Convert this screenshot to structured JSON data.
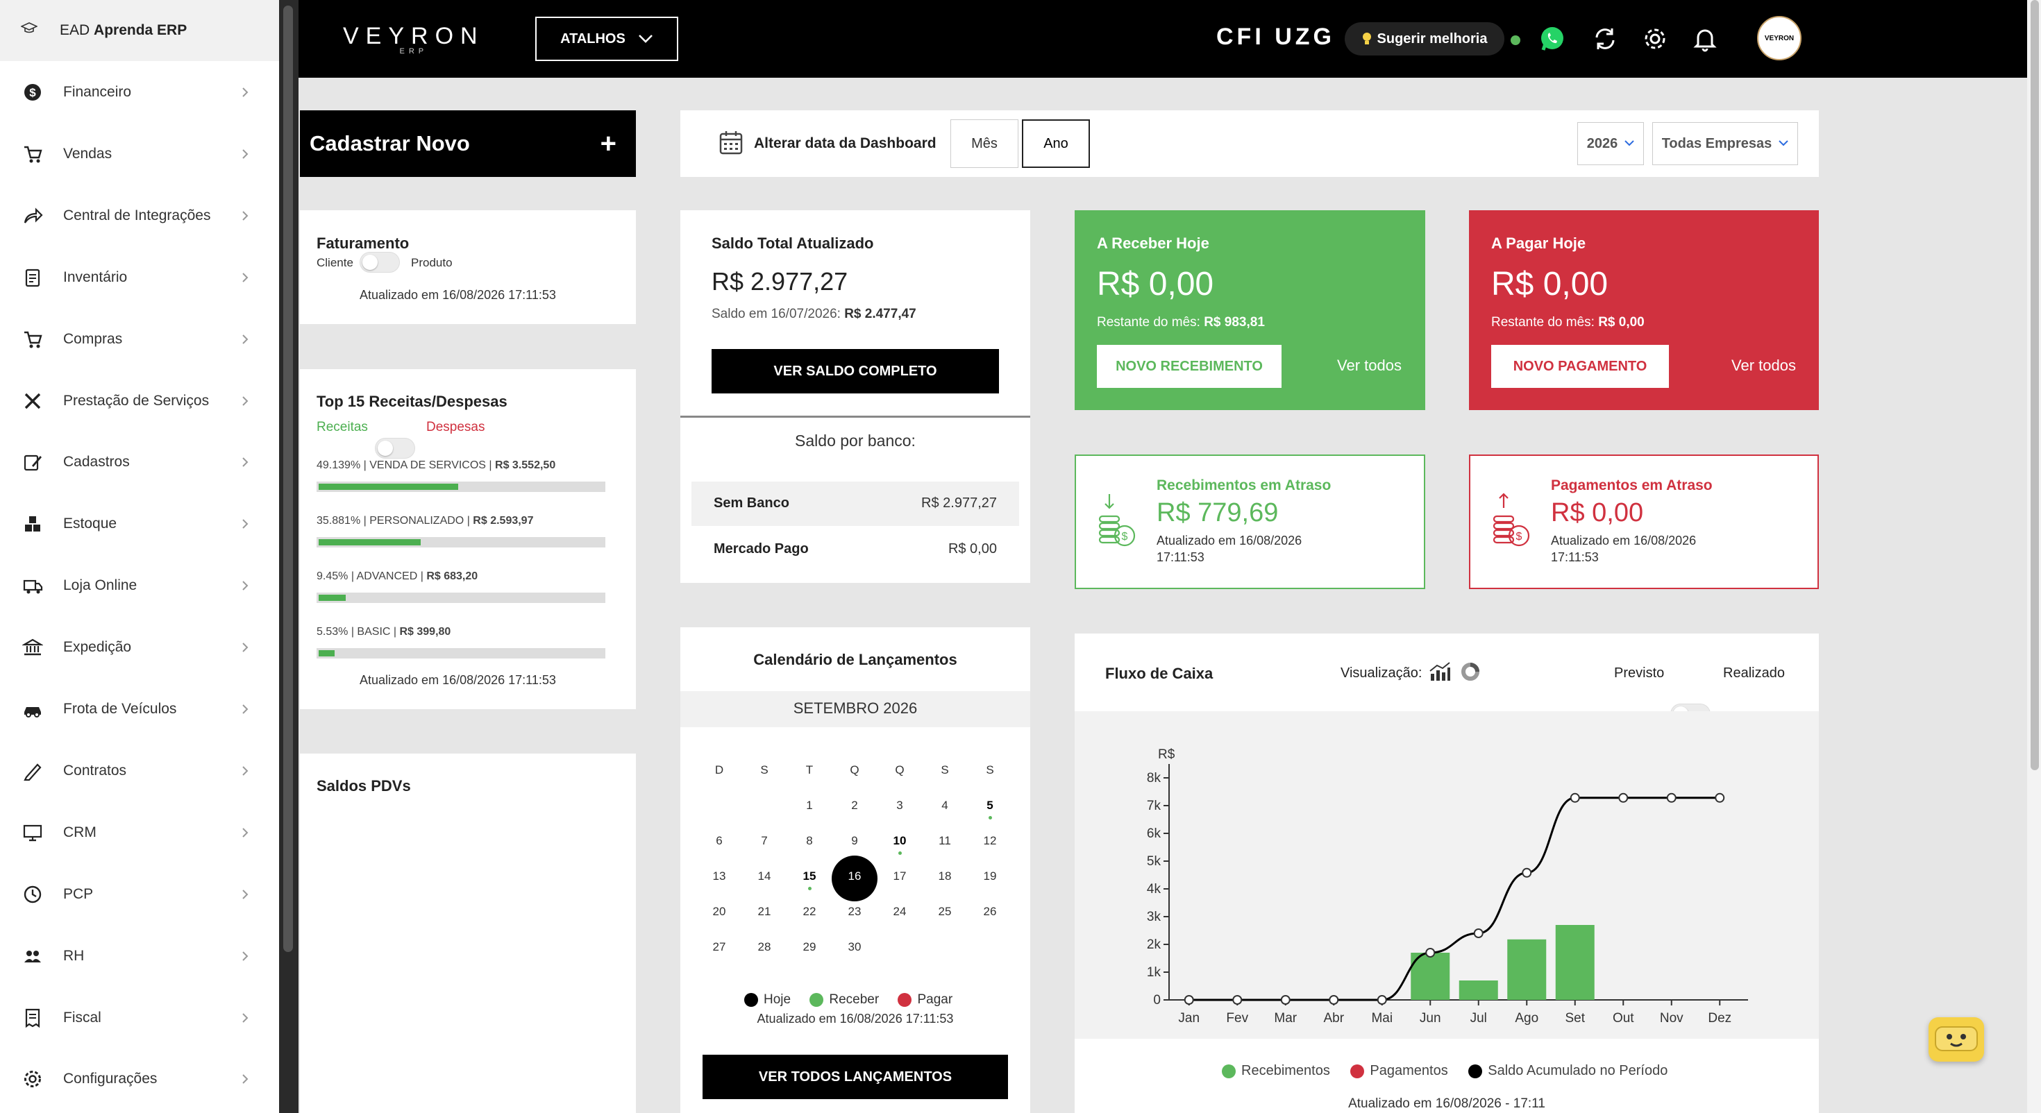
{
  "sidebar": {
    "top": {
      "prefix": "EAD",
      "name": "Aprenda ERP"
    },
    "items": [
      {
        "label": "Financeiro",
        "icon": "dollar-icon"
      },
      {
        "label": "Vendas",
        "icon": "cart-icon"
      },
      {
        "label": "Central de Integrações",
        "icon": "share-icon"
      },
      {
        "label": "Inventário",
        "icon": "clipboard-icon"
      },
      {
        "label": "Compras",
        "icon": "cart-icon"
      },
      {
        "label": "Prestação de Serviços",
        "icon": "tools-icon"
      },
      {
        "label": "Cadastros",
        "icon": "edit-icon"
      },
      {
        "label": "Estoque",
        "icon": "boxes-icon"
      },
      {
        "label": "Loja Online",
        "icon": "truck-icon"
      },
      {
        "label": "Expedição",
        "icon": "bank-icon"
      },
      {
        "label": "Frota de Veículos",
        "icon": "car-icon"
      },
      {
        "label": "Contratos",
        "icon": "pen-icon"
      },
      {
        "label": "CRM",
        "icon": "monitor-icon"
      },
      {
        "label": "PCP",
        "icon": "clock-icon"
      },
      {
        "label": "RH",
        "icon": "users-icon"
      },
      {
        "label": "Fiscal",
        "icon": "receipt-icon"
      },
      {
        "label": "Configurações",
        "icon": "gear-icon"
      }
    ]
  },
  "header": {
    "logo": "VEYRON",
    "logo_sub": "ERP",
    "shortcuts": "ATALHOS",
    "company_code": "CFI UZG",
    "suggest": "Sugerir melhoria",
    "avatar_text": "VEYRON"
  },
  "cadastrar": {
    "label": "Cadastrar Novo",
    "plus": "+"
  },
  "datebar": {
    "label": "Alterar data da Dashboard",
    "month": "Mês",
    "year": "Ano",
    "year_value": "2026",
    "company": "Todas Empresas"
  },
  "faturamento": {
    "title": "Faturamento",
    "left": "Cliente",
    "right": "Produto",
    "updated": "Atualizado em 16/08/2026 17:11:53"
  },
  "top15": {
    "title": "Top 15 Receitas/Despesas",
    "left": "Receitas",
    "right": "Despesas",
    "items": [
      {
        "pct": "49.139%",
        "name": "VENDA DE SERVICOS",
        "value": "R$ 3.552,50",
        "fraction": 0.49139
      },
      {
        "pct": "35.881%",
        "name": "PERSONALIZADO",
        "value": "R$ 2.593,97",
        "fraction": 0.35881
      },
      {
        "pct": "9.45%",
        "name": "ADVANCED",
        "value": "R$ 683,20",
        "fraction": 0.0945
      },
      {
        "pct": "5.53%",
        "name": "BASIC",
        "value": "R$ 399,80",
        "fraction": 0.0553
      }
    ],
    "updated": "Atualizado em 16/08/2026 17:11:53"
  },
  "saldos_pdv": {
    "title": "Saldos PDVs"
  },
  "saldo": {
    "title": "Saldo Total Atualizado",
    "value": "R$ 2.977,27",
    "prev_label": "Saldo em 16/07/2026:",
    "prev_value": "R$ 2.477,47",
    "button": "VER SALDO COMPLETO",
    "by_bank": "Saldo por banco:",
    "banks": [
      {
        "name": "Sem Banco",
        "value": "R$ 2.977,27"
      },
      {
        "name": "Mercado Pago",
        "value": "R$ 0,00"
      }
    ]
  },
  "receber": {
    "title": "A Receber Hoje",
    "value": "R$ 0,00",
    "rest_label": "Restante do mês:",
    "rest_value": "R$ 983,81",
    "button": "NOVO RECEBIMENTO",
    "link": "Ver todos"
  },
  "pagar": {
    "title": "A Pagar Hoje",
    "value": "R$ 0,00",
    "rest_label": "Restante do mês:",
    "rest_value": "R$ 0,00",
    "button": "NOVO PAGAMENTO",
    "link": "Ver todos"
  },
  "atraso_receb": {
    "title": "Recebimentos em Atraso",
    "value": "R$ 779,69",
    "updated1": "Atualizado em 16/08/2026",
    "updated2": "17:11:53"
  },
  "atraso_pag": {
    "title": "Pagamentos em Atraso",
    "value": "R$ 0,00",
    "updated1": "Atualizado em 16/08/2026",
    "updated2": "17:11:53"
  },
  "calendar": {
    "title": "Calendário de Lançamentos",
    "month": "SETEMBRO 2026",
    "weekdays": [
      "D",
      "S",
      "T",
      "Q",
      "Q",
      "S",
      "S"
    ],
    "rows": [
      [
        "",
        "",
        "1",
        "2",
        "3",
        "4",
        "5"
      ],
      [
        "6",
        "7",
        "8",
        "9",
        "10",
        "11",
        "12"
      ],
      [
        "13",
        "14",
        "15",
        "16",
        "17",
        "18",
        "19"
      ],
      [
        "20",
        "21",
        "22",
        "23",
        "24",
        "25",
        "26"
      ],
      [
        "27",
        "28",
        "29",
        "30",
        "",
        "",
        ""
      ]
    ],
    "today": "16",
    "bold_days": [
      "5",
      "10",
      "15"
    ],
    "legend": {
      "today": "Hoje",
      "receive": "Receber",
      "pay": "Pagar"
    },
    "updated": "Atualizado em 16/08/2026 17:11:53",
    "button": "VER TODOS LANÇAMENTOS"
  },
  "fluxo": {
    "title": "Fluxo de Caixa",
    "view_label": "Visualização:",
    "left": "Previsto",
    "right": "Realizado",
    "legend": [
      "Recebimentos",
      "Pagamentos",
      "Saldo Acumulado no Período"
    ],
    "updated": "Atualizado em 16/08/2026 - 17:11"
  },
  "colors": {
    "green": "#5cb85c",
    "red": "#d0313f",
    "black": "#000000"
  },
  "chart_data": {
    "type": "bar",
    "ylabel": "R$",
    "categories": [
      "Jan",
      "Fev",
      "Mar",
      "Abr",
      "Mai",
      "Jun",
      "Jul",
      "Ago",
      "Set",
      "Out",
      "Nov",
      "Dez"
    ],
    "ylim": [
      0,
      8000
    ],
    "yticks": [
      "0",
      "1k",
      "2k",
      "3k",
      "4k",
      "5k",
      "6k",
      "7k",
      "8k"
    ],
    "grid": false,
    "series": [
      {
        "name": "Recebimentos",
        "type": "bar",
        "values": [
          0,
          0,
          0,
          0,
          0,
          1700,
          700,
          2180,
          2700,
          0,
          0,
          0
        ]
      },
      {
        "name": "Pagamentos",
        "type": "bar",
        "values": [
          0,
          0,
          0,
          0,
          0,
          0,
          0,
          0,
          0,
          0,
          0,
          0
        ]
      },
      {
        "name": "Saldo Acumulado no Período",
        "type": "line",
        "values": [
          0,
          0,
          0,
          0,
          0,
          1700,
          2400,
          4580,
          7280,
          7280,
          7280,
          7280
        ]
      }
    ]
  }
}
